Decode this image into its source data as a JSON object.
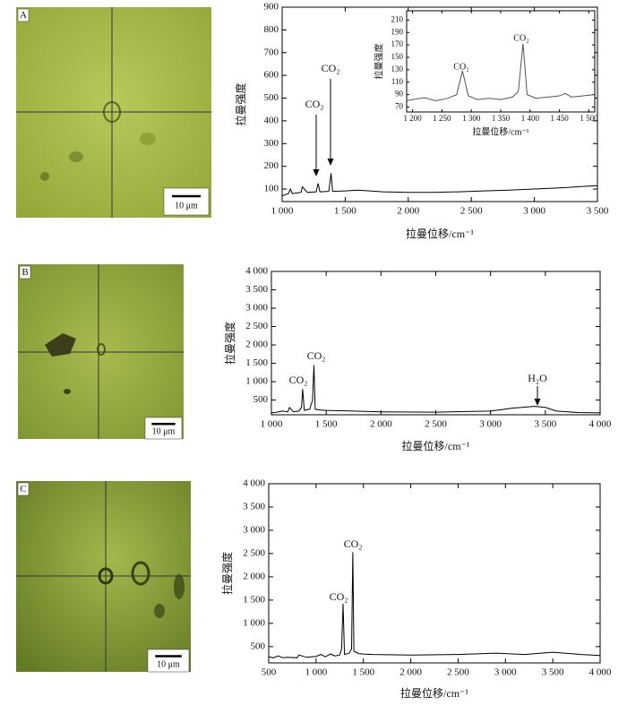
{
  "images": [
    {
      "label": "A",
      "scale_bar": "10 μm"
    },
    {
      "label": "B",
      "scale_bar": "10 μm"
    },
    {
      "label": "C",
      "scale_bar": "10 μm"
    }
  ],
  "chart_data": [
    {
      "type": "line",
      "color": "#000000",
      "x_label": "拉曼位移/cm⁻¹",
      "y_label": "拉曼强度",
      "annotations": [
        "CO₂",
        "CO₂"
      ],
      "x": [
        1000,
        1050,
        1065,
        1080,
        1150,
        1160,
        1200,
        1270,
        1285,
        1300,
        1370,
        1388,
        1400,
        1500,
        1600,
        1800,
        2000,
        2200,
        2400,
        2600,
        2800,
        3000,
        3200,
        3400,
        3500
      ],
      "values": [
        70,
        80,
        100,
        80,
        85,
        110,
        85,
        88,
        125,
        88,
        90,
        170,
        90,
        92,
        95,
        88,
        85,
        85,
        88,
        92,
        95,
        100,
        105,
        112,
        115
      ],
      "xlim": [
        1000,
        3500
      ],
      "xticks": [
        {
          "value": 1000,
          "label": "1 000"
        },
        {
          "value": 1500,
          "label": "1 500"
        },
        {
          "value": 2000,
          "label": "2 000"
        },
        {
          "value": 2500,
          "label": "2 500"
        },
        {
          "value": 3000,
          "label": "3 000"
        },
        {
          "value": 3500,
          "label": "3 500"
        }
      ],
      "ylim": [
        45,
        900
      ],
      "yticks": [
        100,
        200,
        300,
        400,
        500,
        600,
        700,
        800,
        900
      ]
    },
    {
      "type": "line",
      "color": "#555555",
      "x_label": "拉曼位移/cm⁻¹",
      "y_label": "拉曼强度",
      "annotations": [
        "CO₂",
        "CO₂"
      ],
      "x": [
        1190,
        1200,
        1220,
        1240,
        1260,
        1275,
        1285,
        1295,
        1310,
        1330,
        1350,
        1370,
        1380,
        1388,
        1395,
        1410,
        1430,
        1450,
        1460,
        1470,
        1490,
        1510
      ],
      "values": [
        80,
        82,
        85,
        80,
        84,
        90,
        128,
        88,
        82,
        84,
        82,
        86,
        95,
        172,
        90,
        84,
        86,
        88,
        92,
        86,
        88,
        90
      ],
      "xlim": [
        1190,
        1510
      ],
      "xticks": [
        {
          "value": 1200,
          "label": "1 200"
        },
        {
          "value": 1250,
          "label": "1 250"
        },
        {
          "value": 1300,
          "label": "1 300"
        },
        {
          "value": 1350,
          "label": "1 350"
        },
        {
          "value": 1400,
          "label": "1 400"
        },
        {
          "value": 1450,
          "label": "1 450"
        },
        {
          "value": 1500,
          "label": "1 500"
        }
      ],
      "ylim": [
        62,
        225
      ],
      "yticks": [
        70,
        90,
        110,
        130,
        150,
        170,
        190,
        210
      ]
    },
    {
      "type": "line",
      "color": "#000000",
      "x_label": "拉曼位移/cm⁻¹",
      "y_label": "拉曼强度",
      "annotations": [
        "CO₂",
        "CO₂",
        "H₂O"
      ],
      "x": [
        1000,
        1050,
        1100,
        1150,
        1165,
        1200,
        1250,
        1275,
        1285,
        1300,
        1350,
        1375,
        1388,
        1400,
        1450,
        1500,
        2000,
        2500,
        3000,
        3200,
        3400,
        3500,
        3600,
        3800,
        4000
      ],
      "values": [
        150,
        170,
        200,
        180,
        300,
        180,
        200,
        300,
        800,
        220,
        250,
        500,
        1450,
        250,
        230,
        220,
        180,
        170,
        200,
        280,
        330,
        300,
        200,
        160,
        150
      ],
      "xlim": [
        1000,
        4000
      ],
      "xticks": [
        {
          "value": 1000,
          "label": "1 000"
        },
        {
          "value": 1500,
          "label": "1 500"
        },
        {
          "value": 2000,
          "label": "2 000"
        },
        {
          "value": 2500,
          "label": "2 500"
        },
        {
          "value": 3000,
          "label": "3 000"
        },
        {
          "value": 3500,
          "label": "3 500"
        },
        {
          "value": 4000,
          "label": "4 000"
        }
      ],
      "ylim": [
        100,
        4000
      ],
      "yticks": [
        500,
        {
          "value": 1000,
          "label": "1 000"
        },
        {
          "value": 1500,
          "label": "1 500"
        },
        {
          "value": 2000,
          "label": "2 000"
        },
        {
          "value": 2500,
          "label": "2 500"
        },
        {
          "value": 3000,
          "label": "3 000"
        },
        {
          "value": 3500,
          "label": "3 500"
        },
        {
          "value": 4000,
          "label": "4 000"
        }
      ]
    },
    {
      "type": "line",
      "color": "#000000",
      "x_label": "拉曼位移/cm⁻¹",
      "y_label": "拉曼强度",
      "annotations": [
        "CO₂",
        "CO₂"
      ],
      "x": [
        500,
        550,
        600,
        650,
        700,
        800,
        820,
        900,
        1000,
        1050,
        1100,
        1150,
        1200,
        1250,
        1270,
        1285,
        1300,
        1350,
        1375,
        1388,
        1400,
        1450,
        1500,
        1600,
        2000,
        2500,
        2900,
        3000,
        3200,
        3500,
        3800,
        4000
      ],
      "values": [
        280,
        260,
        300,
        260,
        270,
        260,
        320,
        270,
        290,
        330,
        280,
        340,
        300,
        320,
        450,
        1420,
        330,
        360,
        450,
        2530,
        400,
        350,
        340,
        330,
        320,
        330,
        360,
        350,
        330,
        380,
        330,
        310
      ],
      "xlim": [
        500,
        4000
      ],
      "xticks": [
        500,
        {
          "value": 1000,
          "label": "1 000"
        },
        {
          "value": 1500,
          "label": "1 500"
        },
        {
          "value": 2000,
          "label": "2 000"
        },
        {
          "value": 2500,
          "label": "2 500"
        },
        {
          "value": 3000,
          "label": "3 000"
        },
        {
          "value": 3500,
          "label": "3 500"
        },
        {
          "value": 4000,
          "label": "4 000"
        }
      ],
      "ylim": [
        150,
        4000
      ],
      "yticks": [
        500,
        {
          "value": 1000,
          "label": "1 000"
        },
        {
          "value": 1500,
          "label": "1 500"
        },
        {
          "value": 2000,
          "label": "2 000"
        },
        {
          "value": 2500,
          "label": "2 500"
        },
        {
          "value": 3000,
          "label": "3 000"
        },
        {
          "value": 3500,
          "label": "3 500"
        },
        {
          "value": 4000,
          "label": "4 000"
        }
      ]
    }
  ]
}
